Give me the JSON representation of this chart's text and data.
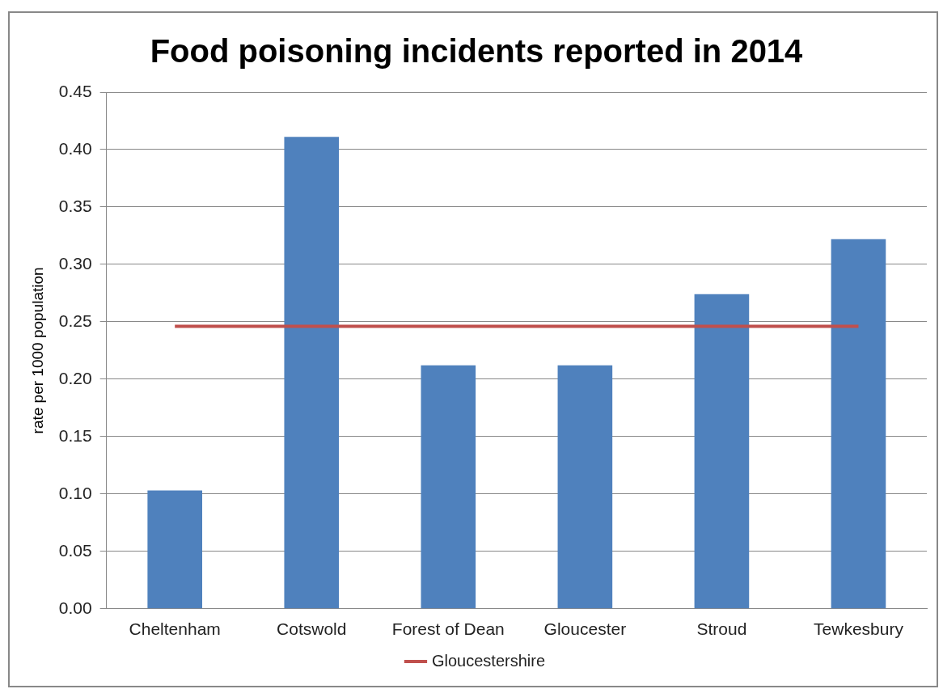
{
  "chart_data": {
    "type": "bar",
    "title": "Food poisoning incidents reported in 2014",
    "ylabel": "rate per 1000 population",
    "categories": [
      "Cheltenham",
      "Cotswold",
      "Forest of Dean",
      "Gloucester",
      "Stroud",
      "Tewkesbury"
    ],
    "series": [
      {
        "color": "#4f81bd",
        "values": [
          0.103,
          0.411,
          0.212,
          0.212,
          0.274,
          0.322
        ]
      },
      {
        "name": "Gloucestershire",
        "type": "line",
        "color": "#c0504d",
        "values": [
          0.246,
          0.246,
          0.246,
          0.246,
          0.246,
          0.246
        ]
      }
    ],
    "ylim": [
      0,
      0.45
    ],
    "yticks": [
      {
        "value": 0,
        "label": "0.00"
      },
      {
        "value": 0.05,
        "label": "0.05"
      },
      {
        "value": 0.1,
        "label": "0.10"
      },
      {
        "value": 0.15,
        "label": "0.15"
      },
      {
        "value": 0.2,
        "label": "0.20"
      },
      {
        "value": 0.25,
        "label": "0.25"
      },
      {
        "value": 0.3,
        "label": "0.30"
      },
      {
        "value": 0.35,
        "label": "0.35"
      },
      {
        "value": 0.4,
        "label": "0.40"
      },
      {
        "value": 0.45,
        "label": "0.45"
      }
    ],
    "grid": "y",
    "legend": "bottom",
    "marker": "none"
  }
}
